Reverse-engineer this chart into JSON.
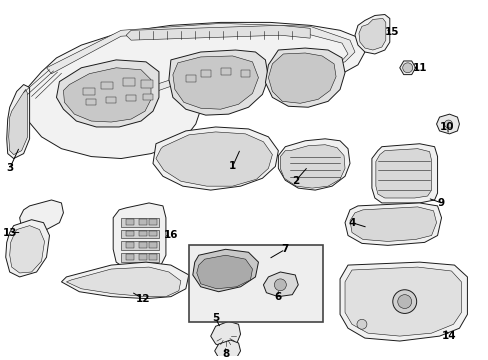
{
  "figsize": [
    4.89,
    3.6
  ],
  "dpi": 100,
  "bg": "#ffffff",
  "lc": "#1a1a1a",
  "lw_main": 0.7,
  "lw_thin": 0.4,
  "fc_part": "#f0f0f0",
  "fc_dark": "#c8c8c8",
  "fc_white": "#ffffff",
  "fc_box": "#e8e8e8",
  "label_fs": 7.5,
  "label_color": "#000000"
}
